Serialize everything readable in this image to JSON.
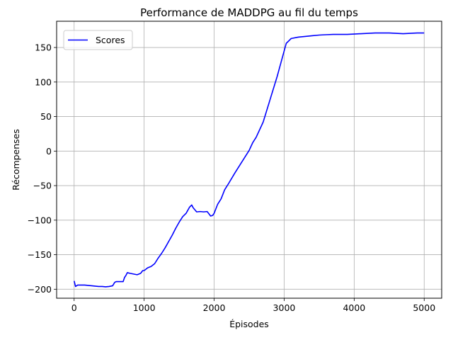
{
  "chart_data": {
    "type": "line",
    "title": "Performance de MADDPG au fil du temps",
    "xlabel": "Épisodes",
    "ylabel": "Récompenses",
    "xlim": [
      -250,
      5250
    ],
    "ylim": [
      -213,
      188
    ],
    "x_ticks": [
      0,
      1000,
      2000,
      3000,
      4000,
      5000
    ],
    "x_tick_labels": [
      "0",
      "1000",
      "2000",
      "3000",
      "4000",
      "5000"
    ],
    "y_ticks": [
      -200,
      -150,
      -100,
      -50,
      0,
      50,
      100,
      150
    ],
    "y_tick_labels": [
      "−200",
      "−150",
      "−100",
      "−50",
      "0",
      "50",
      "100",
      "150"
    ],
    "grid": true,
    "legend_position": "upper-left",
    "series": [
      {
        "name": "Scores",
        "color": "#0000ff",
        "x": [
          0,
          20,
          50,
          100,
          150,
          200,
          250,
          300,
          350,
          400,
          450,
          500,
          550,
          580,
          600,
          650,
          700,
          720,
          740,
          760,
          800,
          850,
          900,
          950,
          980,
          1000,
          1050,
          1100,
          1150,
          1200,
          1250,
          1300,
          1350,
          1400,
          1450,
          1500,
          1550,
          1600,
          1650,
          1680,
          1700,
          1750,
          1800,
          1850,
          1900,
          1950,
          1980,
          2000,
          2050,
          2100,
          2150,
          2200,
          2300,
          2400,
          2500,
          2550,
          2600,
          2700,
          2800,
          2900,
          3000,
          3030,
          3050,
          3070,
          3100,
          3200,
          3300,
          3400,
          3500,
          3600,
          3700,
          3800,
          3900,
          4000,
          4100,
          4200,
          4300,
          4400,
          4500,
          4600,
          4700,
          4800,
          4900,
          5000
        ],
        "y": [
          -188,
          -196,
          -194,
          -194,
          -194,
          -194.5,
          -195,
          -195.5,
          -196,
          -196,
          -196.5,
          -196,
          -195,
          -190,
          -189,
          -189,
          -189,
          -183,
          -180,
          -176,
          -177,
          -178,
          -179,
          -177,
          -173,
          -173,
          -169,
          -167,
          -163,
          -155,
          -148,
          -140,
          -131,
          -122,
          -112,
          -103,
          -95,
          -90,
          -81,
          -78,
          -82,
          -88,
          -87.5,
          -88,
          -87.5,
          -94,
          -93,
          -90,
          -77,
          -69,
          -56,
          -48,
          -31,
          -15,
          1,
          12,
          20,
          42,
          75,
          108,
          145,
          156,
          158,
          160,
          163,
          165,
          166,
          167,
          168,
          168.5,
          169,
          169,
          169,
          169.5,
          170,
          170.5,
          171,
          171,
          171,
          170.5,
          170,
          170.5,
          171,
          171
        ]
      }
    ]
  }
}
